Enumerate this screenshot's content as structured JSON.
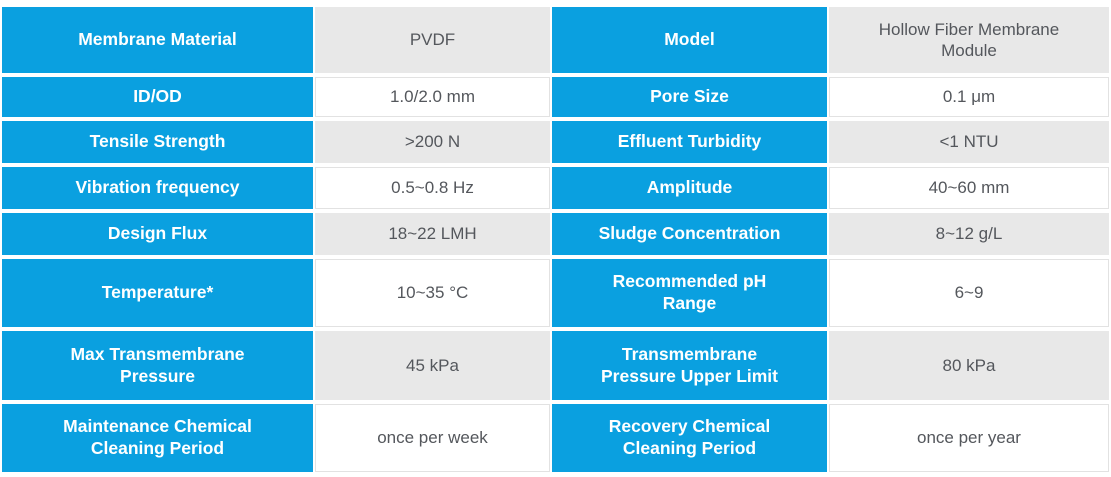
{
  "colors": {
    "header_blue": "#0aa0e0",
    "shade_gray": "#e8e8e8",
    "value_text": "#54575c",
    "label_text": "#ffffff"
  },
  "table": {
    "rows": [
      {
        "c0": "Membrane Material",
        "c1": "PVDF",
        "c2": "Model",
        "c3": "Hollow Fiber Membrane\nModule"
      },
      {
        "c0": "ID/OD",
        "c1": "1.0/2.0 mm",
        "c2": "Pore Size",
        "c3": "0.1 μm"
      },
      {
        "c0": "Tensile Strength",
        "c1": ">200 N",
        "c2": "Effluent Turbidity",
        "c3": "<1 NTU"
      },
      {
        "c0": "Vibration frequency",
        "c1": "0.5~0.8 Hz",
        "c2": "Amplitude",
        "c3": "40~60 mm"
      },
      {
        "c0": "Design Flux",
        "c1": "18~22 LMH",
        "c2": "Sludge Concentration",
        "c3": "8~12 g/L"
      },
      {
        "c0": "Temperature*",
        "c1": "10~35 °C",
        "c2": "Recommended pH\nRange",
        "c3": "6~9"
      },
      {
        "c0": "Max Transmembrane\nPressure",
        "c1": "45 kPa",
        "c2": "Transmembrane\nPressure Upper Limit",
        "c3": "80 kPa"
      },
      {
        "c0": "Maintenance Chemical\nCleaning Period",
        "c1": "once per week",
        "c2": "Recovery Chemical\nCleaning Period",
        "c3": "once per year"
      }
    ]
  }
}
